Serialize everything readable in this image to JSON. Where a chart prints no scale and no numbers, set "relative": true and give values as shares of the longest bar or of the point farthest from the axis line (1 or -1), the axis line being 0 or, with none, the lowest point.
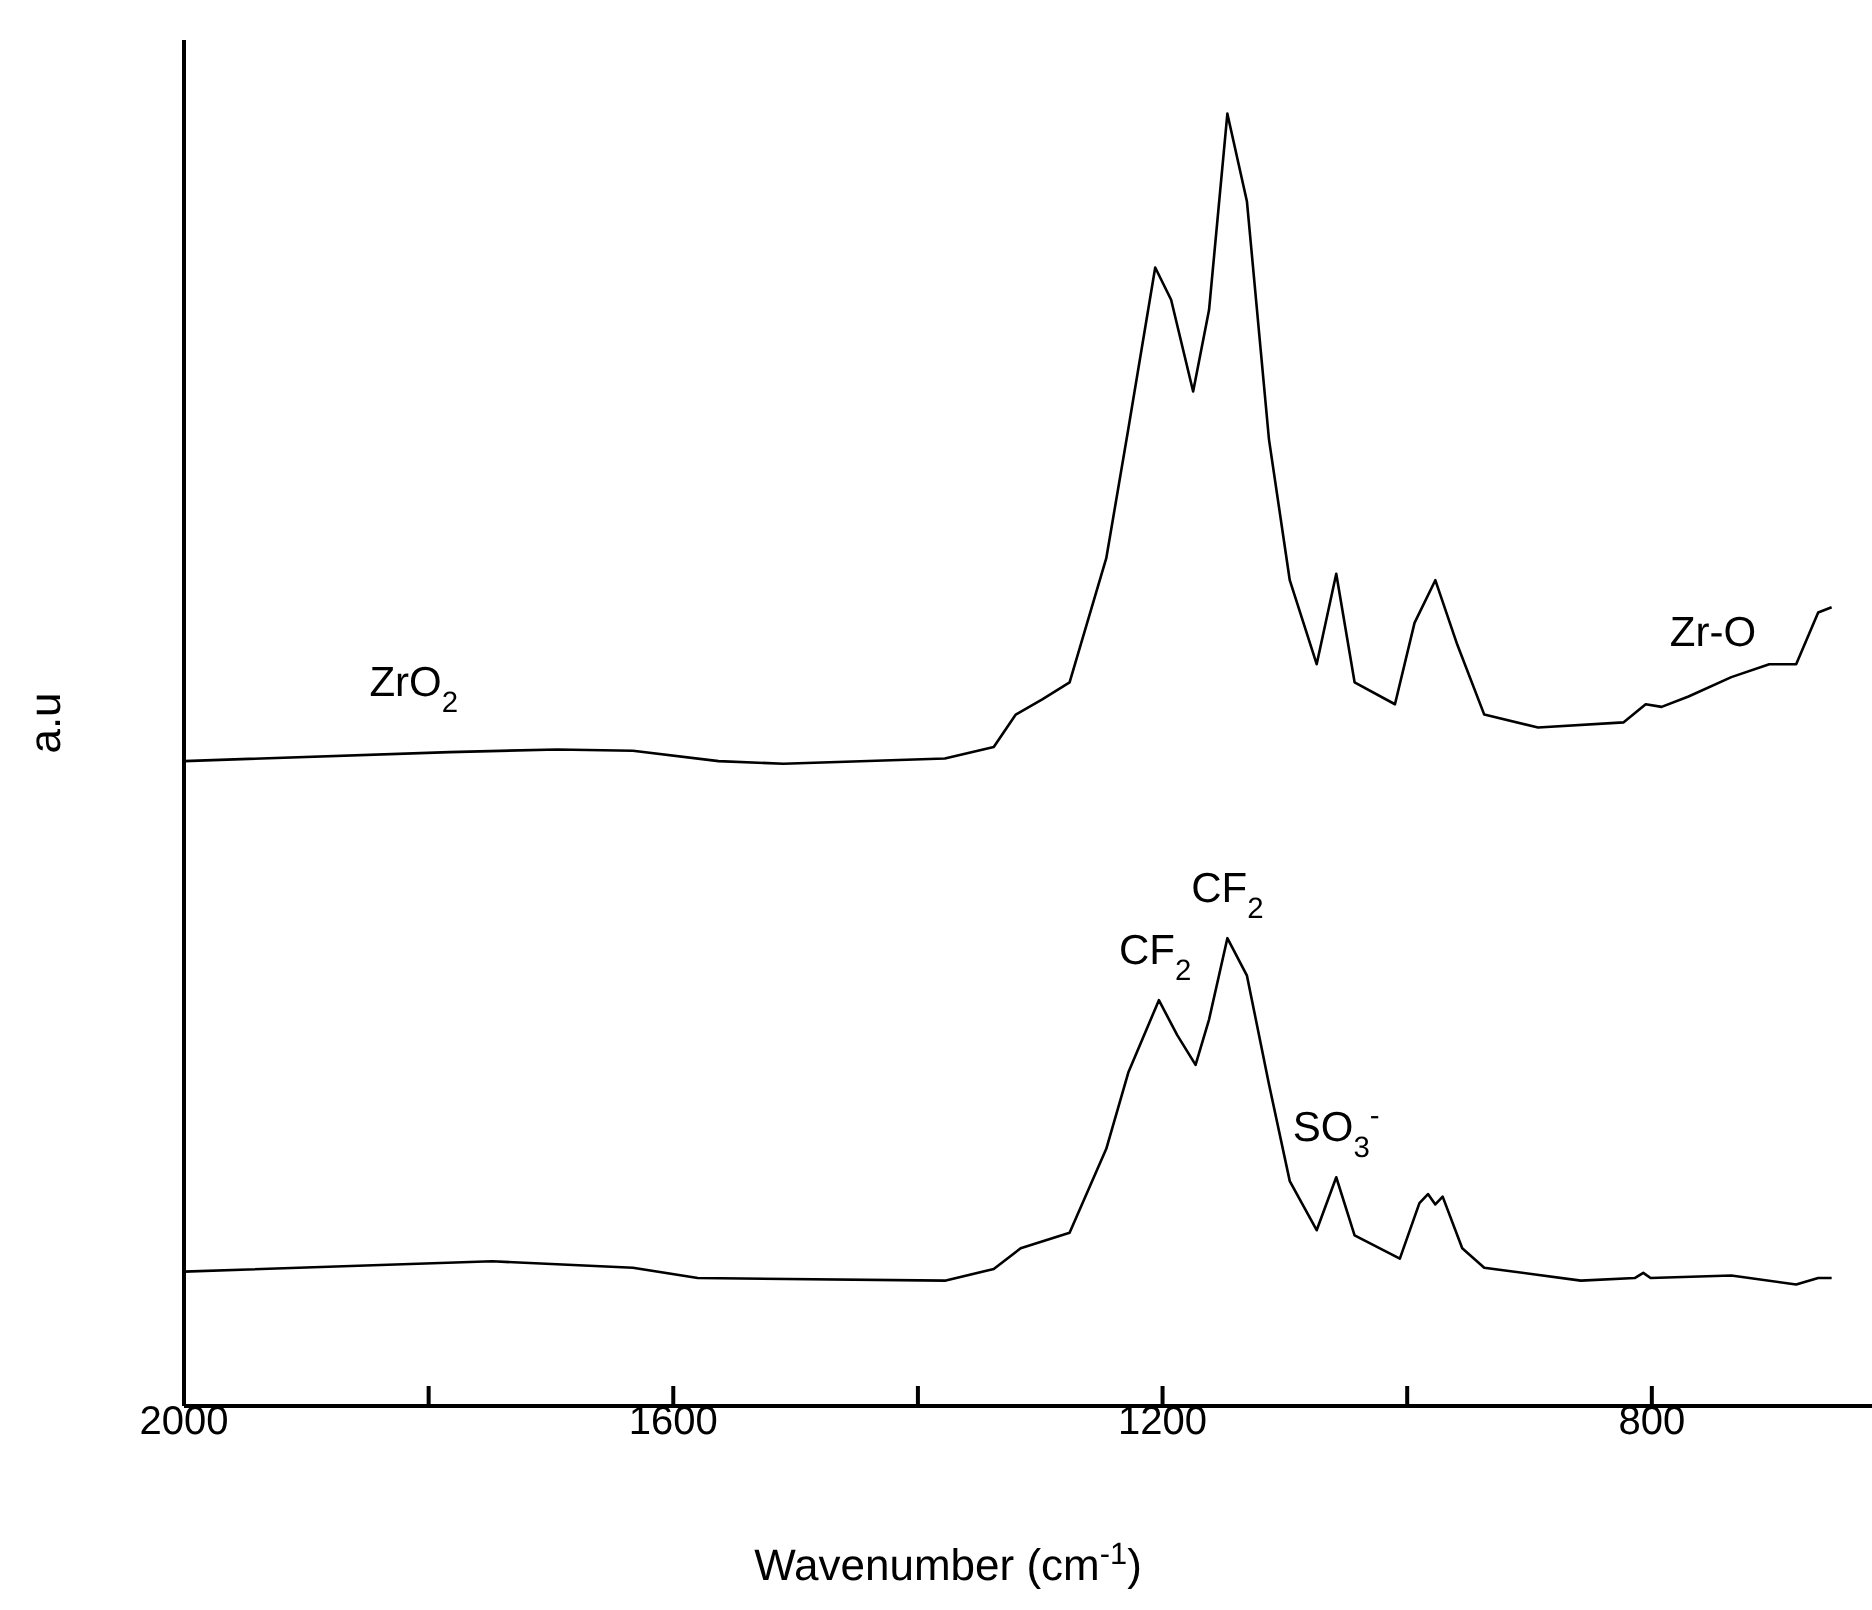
{
  "chart_data": {
    "type": "line",
    "relative": true,
    "xlabel": "Wavenumber (cm$^{-1}$)",
    "ylabel": "a.u",
    "xlim": [
      2000,
      620
    ],
    "xticks": [
      2000,
      {
        "value": 1800,
        "label": null
      },
      1600,
      {
        "value": 1400,
        "label": null
      },
      1200,
      {
        "value": 1000,
        "label": null
      },
      800
    ],
    "grid": false,
    "legend": false,
    "marker": "none",
    "line_style": "solid",
    "annotations": [
      {
        "text": "Zr-O",
        "x": 750,
        "y": 0.56
      },
      {
        "text": "CF$_{2}$",
        "x": 1206,
        "y": 0.314
      },
      {
        "text": "CF$_{2}$",
        "x": 1147,
        "y": 0.362
      },
      {
        "text": "SO$_{3}$$^{-}$",
        "x": 1058,
        "y": 0.177
      }
    ],
    "series": [
      {
        "name": "ZrO$_{2}$",
        "color": "#000000",
        "x": [
          2000,
          1783,
          1695,
          1633,
          1563,
          1510,
          1378,
          1338,
          1320,
          1298,
          1276,
          1246,
          1228,
          1206,
          1193,
          1175,
          1162,
          1147,
          1131,
          1113,
          1096,
          1074,
          1058,
          1043,
          1010,
          994,
          977,
          959,
          937,
          893,
          823,
          805,
          792,
          770,
          735,
          704,
          682,
          664,
          653
        ],
        "values": [
          0.499,
          0.506,
          0.508,
          0.507,
          0.499,
          0.497,
          0.501,
          0.51,
          0.535,
          0.547,
          0.56,
          0.656,
          0.756,
          0.881,
          0.856,
          0.785,
          0.848,
          1,
          0.932,
          0.748,
          0.639,
          0.574,
          0.644,
          0.56,
          0.543,
          0.606,
          0.639,
          0.589,
          0.535,
          0.525,
          0.529,
          0.543,
          0.541,
          0.549,
          0.564,
          0.574,
          0.574,
          0.614,
          0.618
        ]
      },
      {
        "color": "#000000",
        "x": [
          2000,
          1748,
          1633,
          1580,
          1378,
          1338,
          1316,
          1276,
          1246,
          1228,
          1203,
          1188,
          1173,
          1162,
          1147,
          1131,
          1113,
          1096,
          1074,
          1058,
          1043,
          1006,
          990,
          983,
          977,
          971,
          955,
          937,
          858,
          814,
          807,
          801,
          735,
          682,
          664,
          653
        ],
        "values": [
          0.104,
          0.112,
          0.107,
          0.099,
          0.097,
          0.106,
          0.122,
          0.134,
          0.199,
          0.258,
          0.314,
          0.287,
          0.264,
          0.299,
          0.362,
          0.333,
          0.249,
          0.174,
          0.136,
          0.177,
          0.132,
          0.114,
          0.157,
          0.164,
          0.156,
          0.162,
          0.122,
          0.107,
          0.097,
          0.099,
          0.103,
          0.099,
          0.101,
          0.094,
          0.099,
          0.099
        ]
      }
    ]
  }
}
